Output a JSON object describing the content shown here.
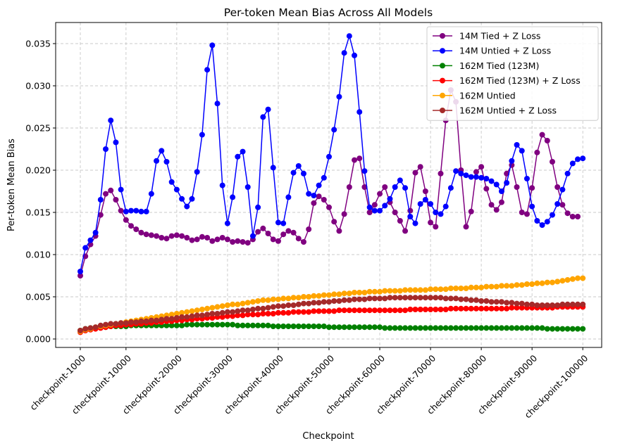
{
  "chart_data": {
    "type": "line",
    "title": "Per-token Mean Bias Across All Models",
    "xlabel": "Checkpoint",
    "ylabel": "Per-token Mean Bias",
    "ylim": [
      -0.001,
      0.0375
    ],
    "grid": true,
    "legend_position": "top-right",
    "y_ticks": [
      "0.000",
      "0.005",
      "0.010",
      "0.015",
      "0.020",
      "0.025",
      "0.030",
      "0.035"
    ],
    "x_ticks": [
      "checkpoint-1000",
      "checkpoint-10000",
      "checkpoint-20000",
      "checkpoint-30000",
      "checkpoint-40000",
      "checkpoint-50000",
      "checkpoint-60000",
      "checkpoint-70000",
      "checkpoint-80000",
      "checkpoint-90000",
      "checkpoint-100000"
    ],
    "x_step": 1000,
    "series": [
      {
        "name": "14M Tied + Z Loss",
        "color": "#800080",
        "values": [
          0.0075,
          0.0098,
          0.0112,
          0.0122,
          0.0147,
          0.0172,
          0.0176,
          0.0165,
          0.0152,
          0.0141,
          0.0134,
          0.013,
          0.0126,
          0.0124,
          0.0123,
          0.0122,
          0.012,
          0.0119,
          0.0122,
          0.0123,
          0.0122,
          0.012,
          0.0117,
          0.0118,
          0.0121,
          0.012,
          0.0116,
          0.0118,
          0.012,
          0.0118,
          0.0115,
          0.0116,
          0.0115,
          0.0114,
          0.0118,
          0.0127,
          0.0131,
          0.0125,
          0.0118,
          0.0116,
          0.0124,
          0.0128,
          0.0126,
          0.0119,
          0.0115,
          0.013,
          0.0161,
          0.0169,
          0.0165,
          0.0156,
          0.0139,
          0.0128,
          0.0148,
          0.018,
          0.0212,
          0.0214,
          0.018,
          0.015,
          0.0159,
          0.0172,
          0.018,
          0.0162,
          0.015,
          0.014,
          0.0128,
          0.0152,
          0.0197,
          0.0204,
          0.0175,
          0.0138,
          0.0133,
          0.0196,
          0.0259,
          0.0295,
          0.0281,
          0.02,
          0.0133,
          0.0151,
          0.0198,
          0.0204,
          0.0178,
          0.0159,
          0.0153,
          0.0162,
          0.0196,
          0.0206,
          0.018,
          0.015,
          0.0148,
          0.0179,
          0.0221,
          0.0242,
          0.0235,
          0.021,
          0.018,
          0.0159,
          0.0149,
          0.0145,
          0.0145
        ]
      },
      {
        "name": "14M Untied + Z Loss",
        "color": "#0000ff",
        "values": [
          0.008,
          0.0108,
          0.0117,
          0.0126,
          0.0165,
          0.0225,
          0.0259,
          0.0233,
          0.0177,
          0.0151,
          0.0152,
          0.0152,
          0.0151,
          0.0151,
          0.0172,
          0.0211,
          0.0223,
          0.021,
          0.0186,
          0.0177,
          0.0166,
          0.0157,
          0.0166,
          0.0198,
          0.0242,
          0.0319,
          0.0348,
          0.0279,
          0.0182,
          0.0137,
          0.0168,
          0.0216,
          0.0222,
          0.018,
          0.0122,
          0.0156,
          0.0263,
          0.0272,
          0.0203,
          0.0138,
          0.0137,
          0.0168,
          0.0197,
          0.0205,
          0.0196,
          0.0172,
          0.017,
          0.0182,
          0.0191,
          0.0216,
          0.0248,
          0.0287,
          0.0339,
          0.0359,
          0.0336,
          0.0269,
          0.0199,
          0.0156,
          0.0152,
          0.0152,
          0.0158,
          0.0166,
          0.018,
          0.0188,
          0.0179,
          0.0145,
          0.0137,
          0.016,
          0.0165,
          0.016,
          0.015,
          0.0148,
          0.0157,
          0.0179,
          0.0199,
          0.0196,
          0.0194,
          0.0192,
          0.0192,
          0.0191,
          0.019,
          0.0187,
          0.0183,
          0.0175,
          0.0185,
          0.0211,
          0.023,
          0.0223,
          0.019,
          0.0157,
          0.014,
          0.0135,
          0.0139,
          0.0147,
          0.016,
          0.0177,
          0.0196,
          0.0208,
          0.0213,
          0.0214
        ]
      },
      {
        "name": "162M Tied (123M)",
        "color": "#008000",
        "values": [
          0.001,
          0.0012,
          0.0013,
          0.0013,
          0.0014,
          0.0014,
          0.0015,
          0.0015,
          0.0015,
          0.0015,
          0.0016,
          0.0016,
          0.0016,
          0.0016,
          0.0016,
          0.0016,
          0.0016,
          0.0016,
          0.0016,
          0.0016,
          0.0016,
          0.0017,
          0.0017,
          0.0017,
          0.0017,
          0.0017,
          0.0017,
          0.0017,
          0.0017,
          0.0017,
          0.0017,
          0.0016,
          0.0016,
          0.0016,
          0.0016,
          0.0016,
          0.0016,
          0.0016,
          0.0015,
          0.0015,
          0.0015,
          0.0015,
          0.0015,
          0.0015,
          0.0015,
          0.0015,
          0.0015,
          0.0015,
          0.0015,
          0.0014,
          0.0014,
          0.0014,
          0.0014,
          0.0014,
          0.0014,
          0.0014,
          0.0014,
          0.0014,
          0.0014,
          0.0014,
          0.0013,
          0.0013,
          0.0013,
          0.0013,
          0.0013,
          0.0013,
          0.0013,
          0.0013,
          0.0013,
          0.0013,
          0.0013,
          0.0013,
          0.0013,
          0.0013,
          0.0013,
          0.0013,
          0.0013,
          0.0013,
          0.0013,
          0.0013,
          0.0013,
          0.0013,
          0.0013,
          0.0013,
          0.0013,
          0.0013,
          0.0013,
          0.0013,
          0.0013,
          0.0013,
          0.0013,
          0.0013,
          0.0012,
          0.0012,
          0.0012,
          0.0012,
          0.0012,
          0.0012,
          0.0012,
          0.0012
        ]
      },
      {
        "name": "162M Tied (123M) + Z Loss",
        "color": "#ff0000",
        "values": [
          0.0008,
          0.001,
          0.0011,
          0.0012,
          0.0013,
          0.0014,
          0.0015,
          0.0016,
          0.0016,
          0.0017,
          0.0017,
          0.0018,
          0.0018,
          0.0019,
          0.0019,
          0.002,
          0.002,
          0.0021,
          0.0021,
          0.0022,
          0.0022,
          0.0023,
          0.0023,
          0.0024,
          0.0024,
          0.0025,
          0.0025,
          0.0026,
          0.0026,
          0.0027,
          0.0027,
          0.0028,
          0.0028,
          0.0029,
          0.0029,
          0.0029,
          0.003,
          0.003,
          0.003,
          0.0031,
          0.0031,
          0.0031,
          0.0032,
          0.0032,
          0.0032,
          0.0032,
          0.0033,
          0.0033,
          0.0033,
          0.0033,
          0.0033,
          0.0034,
          0.0034,
          0.0034,
          0.0034,
          0.0034,
          0.0034,
          0.0034,
          0.0034,
          0.0034,
          0.0034,
          0.0034,
          0.0034,
          0.0034,
          0.0034,
          0.0035,
          0.0035,
          0.0035,
          0.0035,
          0.0035,
          0.0035,
          0.0035,
          0.0035,
          0.0036,
          0.0036,
          0.0036,
          0.0036,
          0.0036,
          0.0036,
          0.0036,
          0.0036,
          0.0036,
          0.0036,
          0.0036,
          0.0036,
          0.0037,
          0.0037,
          0.0037,
          0.0037,
          0.0037,
          0.0037,
          0.0037,
          0.0037,
          0.0037,
          0.0038,
          0.0038,
          0.0038,
          0.0038,
          0.0038,
          0.0038
        ]
      },
      {
        "name": "162M Untied",
        "color": "#ffa500",
        "values": [
          0.0009,
          0.0011,
          0.0012,
          0.0014,
          0.0015,
          0.0016,
          0.0017,
          0.0018,
          0.0019,
          0.002,
          0.0021,
          0.0022,
          0.0023,
          0.0024,
          0.0025,
          0.0026,
          0.0027,
          0.0028,
          0.0029,
          0.003,
          0.0031,
          0.0032,
          0.0033,
          0.0034,
          0.0035,
          0.0036,
          0.0037,
          0.0038,
          0.0039,
          0.004,
          0.0041,
          0.0041,
          0.0042,
          0.0043,
          0.0044,
          0.0045,
          0.0046,
          0.0046,
          0.0047,
          0.0047,
          0.0048,
          0.0048,
          0.0049,
          0.0049,
          0.005,
          0.005,
          0.0051,
          0.0051,
          0.0052,
          0.0052,
          0.0053,
          0.0053,
          0.0054,
          0.0054,
          0.0055,
          0.0055,
          0.0055,
          0.0056,
          0.0056,
          0.0056,
          0.0057,
          0.0057,
          0.0057,
          0.0057,
          0.0058,
          0.0058,
          0.0058,
          0.0058,
          0.0058,
          0.0059,
          0.0059,
          0.0059,
          0.0059,
          0.006,
          0.006,
          0.006,
          0.006,
          0.0061,
          0.0061,
          0.0061,
          0.0062,
          0.0062,
          0.0062,
          0.0063,
          0.0063,
          0.0063,
          0.0064,
          0.0064,
          0.0065,
          0.0065,
          0.0066,
          0.0066,
          0.0067,
          0.0067,
          0.0068,
          0.0069,
          0.007,
          0.0071,
          0.0072,
          0.0072
        ]
      },
      {
        "name": "162M Untied + Z Loss",
        "color": "#a52a2a",
        "values": [
          0.001,
          0.0012,
          0.0013,
          0.0014,
          0.0016,
          0.0017,
          0.0018,
          0.0018,
          0.0019,
          0.0019,
          0.002,
          0.002,
          0.0021,
          0.0021,
          0.0022,
          0.0022,
          0.0023,
          0.0024,
          0.0024,
          0.0025,
          0.0026,
          0.0026,
          0.0027,
          0.0028,
          0.0028,
          0.0029,
          0.003,
          0.003,
          0.0031,
          0.0032,
          0.0032,
          0.0033,
          0.0034,
          0.0034,
          0.0035,
          0.0036,
          0.0036,
          0.0037,
          0.0038,
          0.0039,
          0.0039,
          0.004,
          0.004,
          0.0041,
          0.0042,
          0.0042,
          0.0043,
          0.0043,
          0.0044,
          0.0044,
          0.0045,
          0.0045,
          0.0046,
          0.0046,
          0.0047,
          0.0047,
          0.0047,
          0.0048,
          0.0048,
          0.0048,
          0.0048,
          0.0049,
          0.0049,
          0.0049,
          0.0049,
          0.0049,
          0.0049,
          0.0049,
          0.0049,
          0.0049,
          0.0049,
          0.0049,
          0.0048,
          0.0048,
          0.0048,
          0.0047,
          0.0047,
          0.0046,
          0.0046,
          0.0045,
          0.0045,
          0.0044,
          0.0044,
          0.0044,
          0.0043,
          0.0043,
          0.0042,
          0.0042,
          0.0041,
          0.0041,
          0.004,
          0.004,
          0.004,
          0.004,
          0.004,
          0.0041,
          0.0041,
          0.0041,
          0.0041,
          0.0041
        ]
      }
    ]
  }
}
